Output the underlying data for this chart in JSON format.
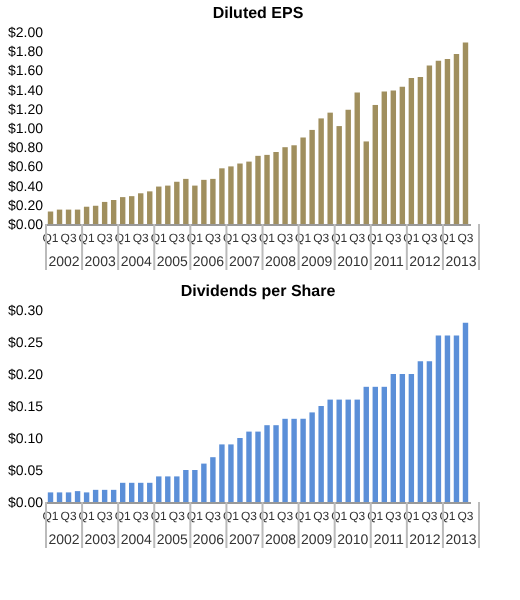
{
  "chart_data": [
    {
      "type": "bar",
      "title": "Diluted EPS",
      "categories": [
        "Q1",
        null,
        "Q3",
        null,
        "Q1",
        null,
        "Q3",
        null,
        "Q1",
        null,
        "Q3",
        null,
        "Q1",
        null,
        "Q3",
        null,
        "Q1",
        null,
        "Q3",
        null,
        "Q1",
        null,
        "Q3",
        null,
        "Q1",
        null,
        "Q3",
        null,
        "Q1",
        null,
        "Q3",
        null,
        "Q1",
        null,
        "Q3",
        null,
        "Q1",
        null,
        "Q3",
        null,
        "Q1",
        null,
        "Q3",
        null,
        "Q1",
        null,
        "Q3"
      ],
      "values": [
        0.13,
        0.15,
        0.15,
        0.15,
        0.18,
        0.19,
        0.23,
        0.25,
        0.28,
        0.29,
        0.32,
        0.34,
        0.39,
        0.4,
        0.44,
        0.47,
        0.4,
        0.46,
        0.47,
        0.58,
        0.6,
        0.63,
        0.65,
        0.71,
        0.72,
        0.75,
        0.8,
        0.82,
        0.9,
        0.98,
        1.1,
        1.16,
        1.02,
        1.19,
        1.37,
        0.86,
        1.24,
        1.38,
        1.39,
        1.43,
        1.52,
        1.53,
        1.65,
        1.7,
        1.72,
        1.77,
        1.89
      ],
      "color": "#a08f5e",
      "ylim": [
        0,
        2
      ],
      "yticks": [
        {
          "value": 0,
          "label": "$0.00"
        },
        {
          "value": 0.2,
          "label": "$0.20"
        },
        {
          "value": 0.4,
          "label": "$0.40"
        },
        {
          "value": 0.6,
          "label": "$0.60"
        },
        {
          "value": 0.8,
          "label": "$0.80"
        },
        {
          "value": 1.0,
          "label": "$1.00"
        },
        {
          "value": 1.2,
          "label": "$1.20"
        },
        {
          "value": 1.4,
          "label": "$1.40"
        },
        {
          "value": 1.6,
          "label": "$1.60"
        },
        {
          "value": 1.8,
          "label": "$1.80"
        },
        {
          "value": 2.0,
          "label": "$2.00"
        }
      ],
      "annotations": [
        "2002",
        "2003",
        "2004",
        "2005",
        "2006",
        "2007",
        "2008",
        "2009",
        "2010",
        "2011",
        "2012",
        "2013"
      ],
      "grid": false
    },
    {
      "type": "bar",
      "title": "Dividends per Share",
      "categories": [
        "Q1",
        null,
        "Q3",
        null,
        "Q1",
        null,
        "Q3",
        null,
        "Q1",
        null,
        "Q3",
        null,
        "Q1",
        null,
        "Q3",
        null,
        "Q1",
        null,
        "Q3",
        null,
        "Q1",
        null,
        "Q3",
        null,
        "Q1",
        null,
        "Q3",
        null,
        "Q1",
        null,
        "Q3",
        null,
        "Q1",
        null,
        "Q3",
        null,
        "Q1",
        null,
        "Q3",
        null,
        "Q1",
        null,
        "Q3",
        null,
        "Q1",
        null,
        "Q3"
      ],
      "values": [
        0.015,
        0.015,
        0.015,
        0.017,
        0.015,
        0.019,
        0.019,
        0.019,
        0.03,
        0.03,
        0.03,
        0.03,
        0.04,
        0.04,
        0.04,
        0.05,
        0.05,
        0.06,
        0.07,
        0.09,
        0.09,
        0.1,
        0.11,
        0.11,
        0.12,
        0.12,
        0.13,
        0.13,
        0.13,
        0.14,
        0.15,
        0.16,
        0.16,
        0.16,
        0.16,
        0.18,
        0.18,
        0.18,
        0.2,
        0.2,
        0.2,
        0.22,
        0.22,
        0.26,
        0.26,
        0.26,
        0.28
      ],
      "color": "#5b8fd8",
      "ylim": [
        0,
        0.3
      ],
      "yticks": [
        {
          "value": 0,
          "label": "$0.00"
        },
        {
          "value": 0.05,
          "label": "$0.05"
        },
        {
          "value": 0.1,
          "label": "$0.10"
        },
        {
          "value": 0.15,
          "label": "$0.15"
        },
        {
          "value": 0.2,
          "label": "$0.20"
        },
        {
          "value": 0.25,
          "label": "$0.25"
        },
        {
          "value": 0.3,
          "label": "$0.30"
        }
      ],
      "annotations": [
        "2002",
        "2003",
        "2004",
        "2005",
        "2006",
        "2007",
        "2008",
        "2009",
        "2010",
        "2011",
        "2012",
        "2013"
      ],
      "grid": false
    }
  ]
}
